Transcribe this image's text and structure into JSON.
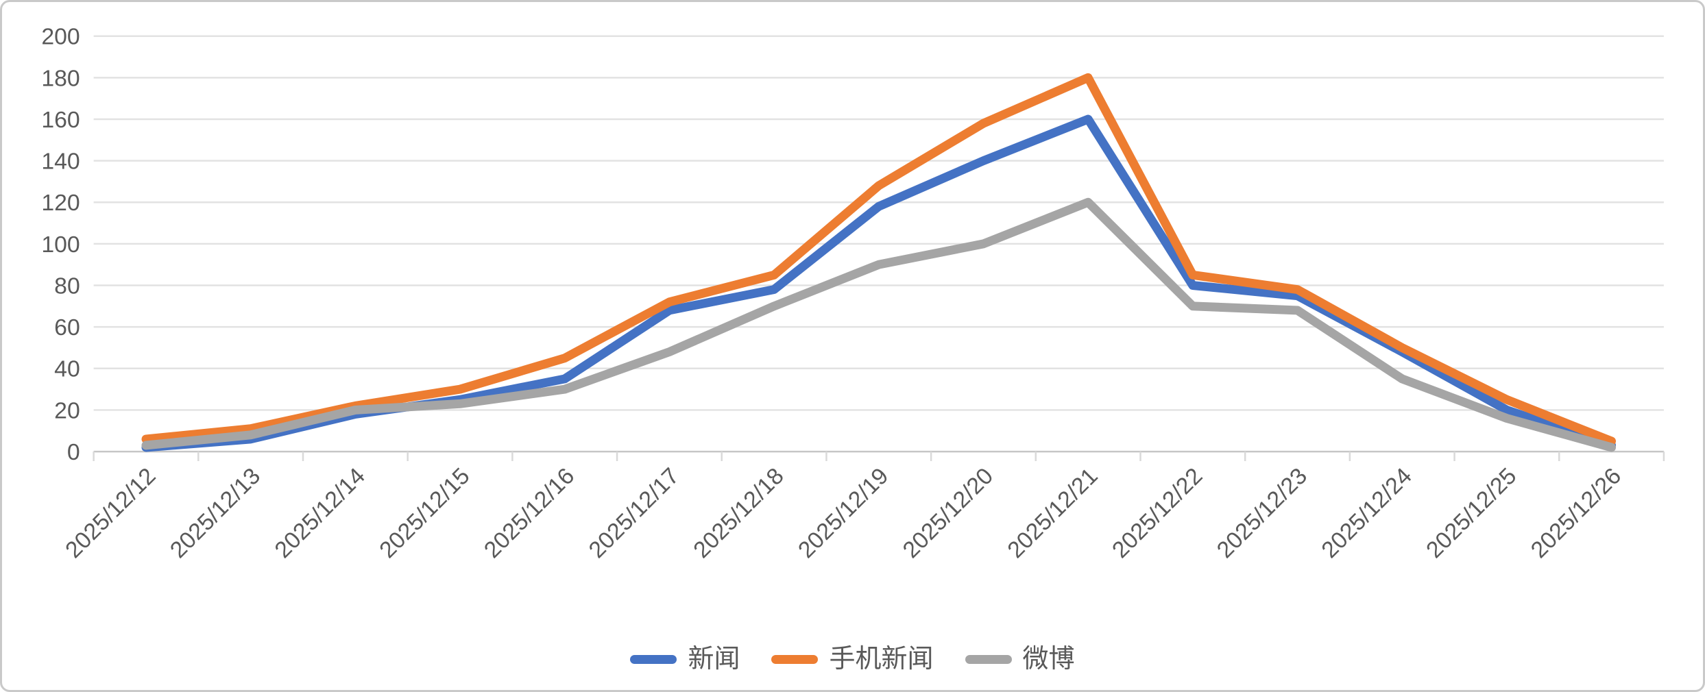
{
  "chart_data": {
    "type": "line",
    "title": "",
    "categories": [
      "2025/12/12",
      "2025/12/13",
      "2025/12/14",
      "2025/12/15",
      "2025/12/16",
      "2025/12/17",
      "2025/12/18",
      "2025/12/19",
      "2025/12/20",
      "2025/12/21",
      "2025/12/22",
      "2025/12/23",
      "2025/12/24",
      "2025/12/25",
      "2025/12/26"
    ],
    "series": [
      {
        "name": "新闻",
        "slug": "news",
        "color": "#4472C4",
        "values": [
          2,
          6,
          18,
          25,
          35,
          68,
          78,
          118,
          140,
          160,
          80,
          75,
          48,
          20,
          3
        ]
      },
      {
        "name": "手机新闻",
        "slug": "mobile-news",
        "color": "#ED7D31",
        "values": [
          6,
          11,
          22,
          30,
          45,
          72,
          85,
          128,
          158,
          180,
          85,
          78,
          50,
          25,
          5
        ]
      },
      {
        "name": "微博",
        "slug": "weibo",
        "color": "#A5A5A5",
        "values": [
          3,
          8,
          20,
          23,
          30,
          48,
          70,
          90,
          100,
          120,
          70,
          68,
          35,
          16,
          2
        ]
      }
    ],
    "y_axis": {
      "min": 0,
      "max": 200,
      "step": 20,
      "tick_labels": [
        "0",
        "20",
        "40",
        "60",
        "80",
        "100",
        "120",
        "140",
        "160",
        "180",
        "200"
      ]
    },
    "x_axis": {
      "label_rotation_deg": -45,
      "ticks_between_categories": true
    },
    "grid": "horizontal",
    "legend_position": "bottom",
    "style": {
      "gridline_color": "#e2e2e2",
      "axis_line_color": "#c6c6c6",
      "tick_color": "#d9d9d9",
      "label_color": "#595959",
      "frame_border_color": "#c9c9c9",
      "background": "#ffffff",
      "line_width": 13
    }
  }
}
